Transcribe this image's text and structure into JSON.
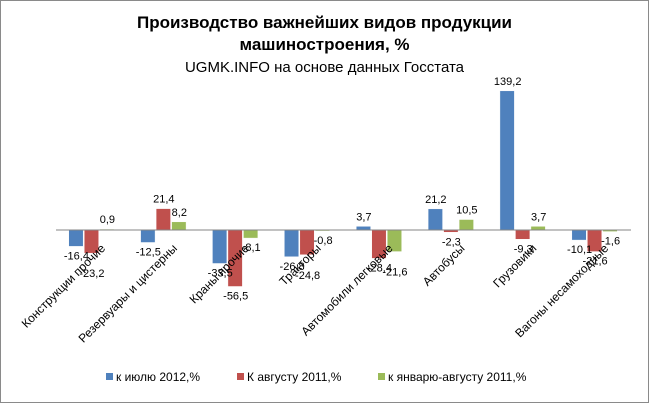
{
  "chart_data": {
    "type": "bar",
    "title": [
      "Производство важнейших видов продукции",
      "машиностроения, %"
    ],
    "subtitle": "UGMK.INFO на основе данных Госстата",
    "categories": [
      "Конструкции прочие",
      "Резервуары и цистерны",
      "Краны прочие",
      "Тракторы",
      "Автомобили легковые",
      "Автобусы",
      "Грузовики",
      "Вагоны несамоходные"
    ],
    "series": [
      {
        "name": "к июлю 2012,%",
        "color": "#4f81bd",
        "values": [
          -16.4,
          -12.5,
          -33.5,
          -26.8,
          3.7,
          21.2,
          139.2,
          -10.1
        ],
        "labels": [
          "-16,4",
          "-12,5",
          "-33,5",
          "-26,8",
          "3,7",
          "21,2",
          "139,2",
          "-10,1"
        ]
      },
      {
        "name": "К августу 2011,%",
        "color": "#c0504d",
        "values": [
          -23.2,
          21.4,
          -56.5,
          -24.8,
          -28.4,
          -2.3,
          -9.3,
          -21.6
        ],
        "labels": [
          "-23,2",
          "21,4",
          "-56,5",
          "-24,8",
          "-28,4",
          "-2,3",
          "-9,3",
          "-21,6"
        ]
      },
      {
        "name": "к январю-августу 2011,%",
        "color": "#9bbb59",
        "values": [
          0.9,
          8.2,
          -8.1,
          -0.8,
          -21.6,
          10.5,
          3.7,
          -1.6
        ],
        "labels": [
          "0,9",
          "8,2",
          "-8,1",
          "-0,8",
          "-21,6",
          "10,5",
          "3,7",
          "-1,6"
        ]
      }
    ],
    "ylim": [
      -60,
      140
    ],
    "legend": "bottom",
    "grid": false
  }
}
